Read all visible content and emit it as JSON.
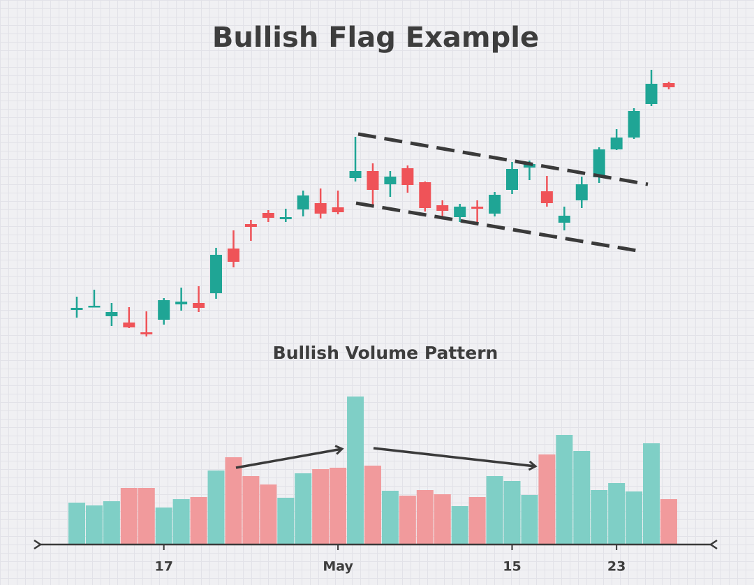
{
  "chart_data": [
    {
      "type": "candlestick",
      "title": "Bullish Flag Example",
      "open": [
        56,
        60,
        47,
        38,
        24,
        42,
        64,
        66,
        80,
        144,
        179,
        195,
        186,
        200,
        209,
        203,
        245,
        255,
        236,
        259,
        239,
        206,
        189,
        204,
        194,
        228,
        260,
        226,
        181,
        213,
        246,
        286,
        303,
        351,
        381
      ],
      "high": [
        75,
        85,
        66,
        60,
        54,
        73,
        88,
        90,
        145,
        170,
        185,
        199,
        201,
        227,
        230,
        227,
        304,
        266,
        255,
        263,
        240,
        213,
        208,
        213,
        225,
        268,
        270,
        248,
        204,
        247,
        289,
        315,
        345,
        400,
        383
      ],
      "low": [
        45,
        60,
        33,
        30,
        18,
        35,
        55,
        53,
        72,
        117,
        155,
        182,
        182,
        190,
        187,
        193,
        240,
        203,
        218,
        224,
        197,
        190,
        182,
        178,
        190,
        222,
        242,
        204,
        170,
        202,
        238,
        285,
        301,
        348,
        372
      ],
      "close": [
        59,
        62,
        53,
        31,
        21,
        70,
        68,
        59,
        135,
        125,
        175,
        188,
        189,
        220,
        194,
        196,
        255,
        228,
        247,
        235,
        202,
        198,
        204,
        201,
        221,
        258,
        265,
        209,
        191,
        236,
        286,
        303,
        341,
        380,
        375
      ],
      "ylim": [
        0,
        420
      ],
      "up_color": "#1fa595",
      "down_color": "#ef5358"
    },
    {
      "type": "bar",
      "title": "Bullish Volume Pattern",
      "categories": [
        null,
        null,
        null,
        null,
        null,
        "17",
        null,
        null,
        null,
        null,
        null,
        null,
        null,
        null,
        null,
        "May",
        null,
        null,
        null,
        null,
        null,
        null,
        null,
        null,
        null,
        "15",
        null,
        null,
        null,
        null,
        null,
        "23",
        null,
        null,
        null
      ],
      "values": [
        60,
        56,
        62,
        81,
        81,
        53,
        65,
        68,
        106,
        125,
        98,
        86,
        67,
        102,
        108,
        110,
        212,
        113,
        77,
        70,
        78,
        72,
        55,
        68,
        98,
        91,
        71,
        129,
        157,
        134,
        78,
        88,
        76,
        145,
        65
      ],
      "ylim": [
        0,
        220
      ],
      "up_color": "#7fcfc6",
      "down_color": "#f19a9c"
    }
  ]
}
